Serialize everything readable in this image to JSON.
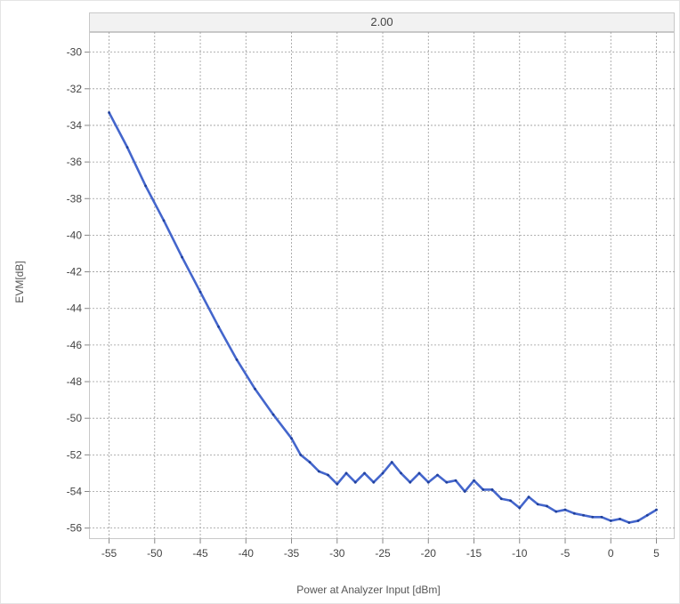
{
  "chart_data": {
    "type": "line",
    "panel_title": "2.00",
    "xlabel": "Power at Analyzer Input [dBm]",
    "ylabel": "EVM[dB]",
    "xlim": [
      -57.2,
      7
    ],
    "ylim": [
      -56.6,
      -28.9
    ],
    "xticks": [
      -55,
      -50,
      -45,
      -40,
      -35,
      -30,
      -25,
      -20,
      -15,
      -10,
      -5,
      0,
      5
    ],
    "yticks": [
      -30,
      -32,
      -34,
      -36,
      -38,
      -40,
      -42,
      -44,
      -46,
      -48,
      -50,
      -52,
      -54,
      -56
    ],
    "xtick_labels": [
      "-55",
      "-50",
      "-45",
      "-40",
      "-35",
      "-30",
      "-25",
      "-20",
      "-15",
      "-10",
      "-5",
      "0",
      "5"
    ],
    "ytick_labels": [
      "-30",
      "-32",
      "-34",
      "-36",
      "-38",
      "-40",
      "-42",
      "-44",
      "-46",
      "-48",
      "-50",
      "-52",
      "-54",
      "-56"
    ],
    "grid": true,
    "series": [
      {
        "color": "#4466cc",
        "x": [
          -55,
          -53,
          -51,
          -49,
          -47,
          -45,
          -43,
          -41,
          -39,
          -37,
          -35,
          -34,
          -33,
          -32,
          -31,
          -30,
          -29,
          -28,
          -27,
          -26,
          -25,
          -24,
          -23,
          -22,
          -21,
          -20,
          -19,
          -18,
          -17,
          -16,
          -15,
          -14,
          -13,
          -12,
          -11,
          -10,
          -9,
          -8,
          -7,
          -6,
          -5,
          -4,
          -3,
          -2,
          -1,
          0,
          1,
          2,
          3,
          4,
          5
        ],
        "y": [
          -33.3,
          -35.2,
          -37.3,
          -39.2,
          -41.2,
          -43.1,
          -45.0,
          -46.8,
          -48.4,
          -49.8,
          -51.1,
          -52.0,
          -52.4,
          -52.9,
          -53.1,
          -53.6,
          -53.0,
          -53.5,
          -53.0,
          -53.5,
          -53.0,
          -52.4,
          -53.0,
          -53.5,
          -53.0,
          -53.5,
          -53.1,
          -53.5,
          -53.4,
          -54.0,
          -53.4,
          -53.9,
          -53.9,
          -54.4,
          -54.5,
          -54.9,
          -54.3,
          -54.7,
          -54.8,
          -55.1,
          -55.0,
          -55.2,
          -55.3,
          -55.4,
          -55.4,
          -55.6,
          -55.5,
          -55.7,
          -55.6,
          -55.3,
          -55.0
        ]
      }
    ]
  }
}
